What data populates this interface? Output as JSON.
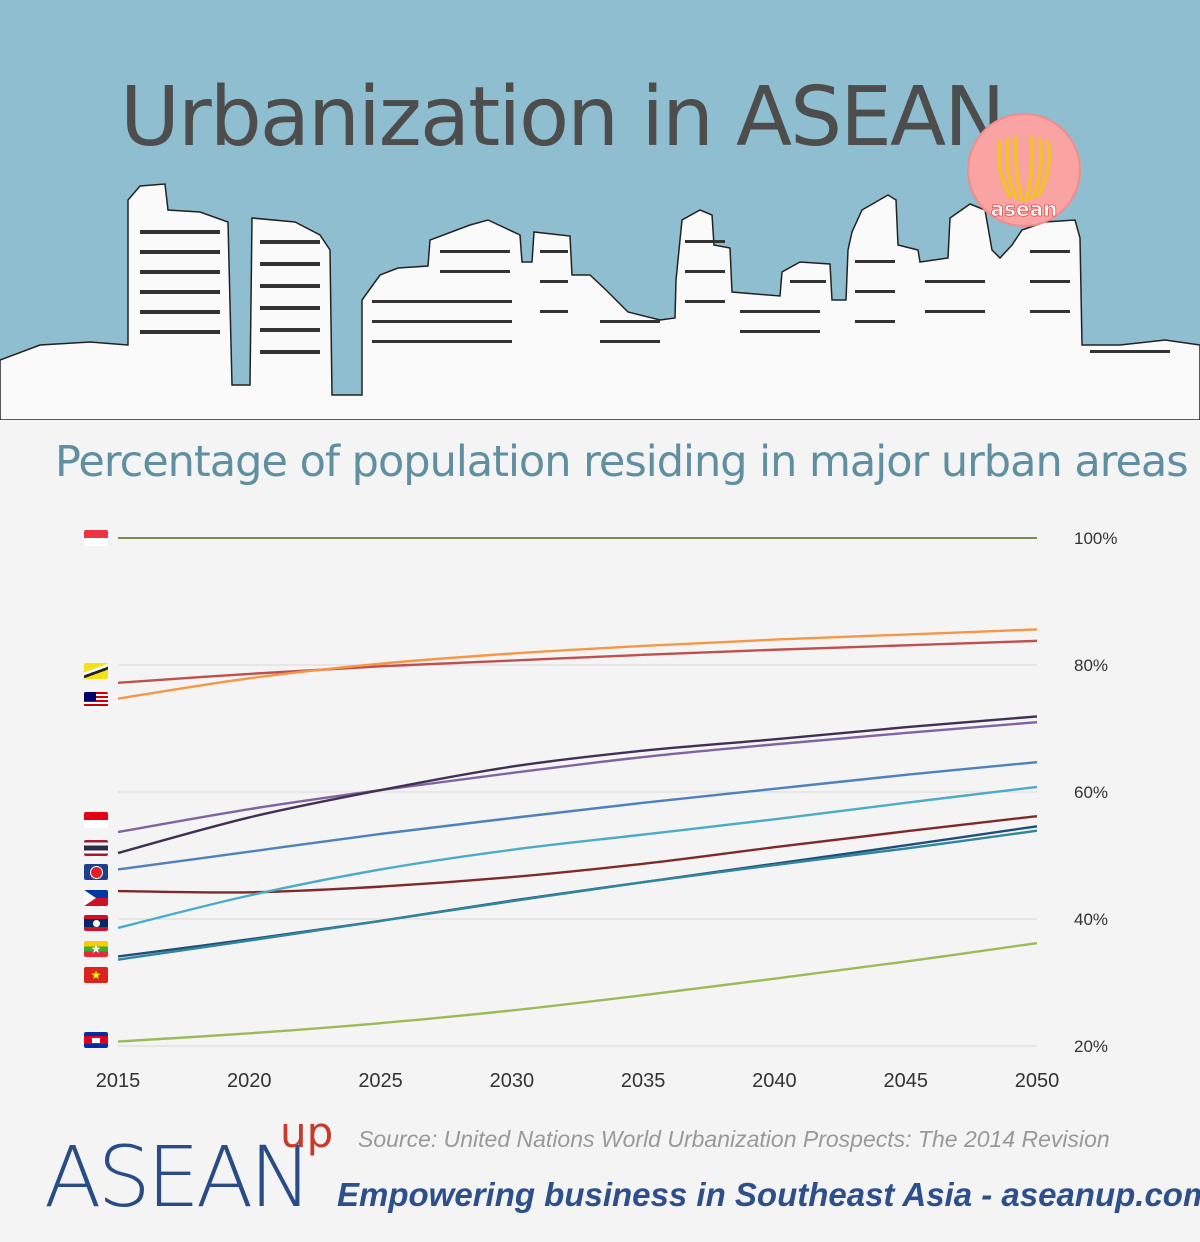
{
  "header": {
    "title": "Urbanization in ASEAN",
    "logo_text": "asean"
  },
  "chart_data": {
    "type": "line",
    "title": "Percentage of population residing in major urban areas",
    "x": [
      2015,
      2020,
      2025,
      2030,
      2035,
      2040,
      2045,
      2050
    ],
    "x_tick_labels": [
      "2015",
      "2020",
      "2025",
      "2030",
      "2035",
      "2040",
      "2045",
      "2050"
    ],
    "y_tick_labels": [
      "100%",
      "80%",
      "60%",
      "40%",
      "20%"
    ],
    "y_ticks": [
      100,
      80,
      60,
      40,
      20
    ],
    "ylim": [
      20,
      100
    ],
    "grid": true,
    "series": [
      {
        "flag": "singapore",
        "color": "#4e6b1c",
        "values": [
          100,
          100,
          100,
          100,
          100,
          100,
          100,
          100
        ]
      },
      {
        "flag": "brunei",
        "color": "#c0504d",
        "values": [
          77.2,
          78.6,
          79.8,
          80.7,
          81.6,
          82.4,
          83.1,
          83.8
        ]
      },
      {
        "flag": "malaysia",
        "color": "#f79646",
        "values": [
          74.7,
          77.9,
          80.2,
          81.8,
          83.0,
          84.0,
          84.8,
          85.6
        ]
      },
      {
        "flag": "indonesia",
        "color": "#8064a2",
        "values": [
          53.7,
          57.3,
          60.3,
          63.0,
          65.5,
          67.5,
          69.3,
          71.0
        ]
      },
      {
        "flag": "thailand",
        "color": "#403152",
        "values": [
          50.4,
          56.0,
          60.3,
          64.0,
          66.5,
          68.3,
          70.2,
          71.9
        ]
      },
      {
        "flag": "asean",
        "color": "#4f81bd",
        "values": [
          47.8,
          50.6,
          53.4,
          55.9,
          58.3,
          60.5,
          62.7,
          64.7
        ]
      },
      {
        "flag": "philippines",
        "color": "#7f2a2a",
        "values": [
          44.4,
          44.2,
          45.1,
          46.6,
          48.7,
          51.3,
          53.8,
          56.2
        ]
      },
      {
        "flag": "laos",
        "color": "#4bacc6",
        "values": [
          38.6,
          43.7,
          47.8,
          50.9,
          53.3,
          55.7,
          58.3,
          60.8
        ]
      },
      {
        "flag": "myanmar",
        "color": "#1f4e79",
        "values": [
          34.1,
          36.8,
          39.7,
          42.9,
          45.8,
          48.7,
          51.6,
          54.6
        ]
      },
      {
        "flag": "vietnam",
        "color": "#31859c",
        "values": [
          33.6,
          36.6,
          39.7,
          42.8,
          45.8,
          48.5,
          51.1,
          53.9
        ]
      },
      {
        "flag": "cambodia",
        "color": "#9bbb59",
        "values": [
          20.7,
          22.0,
          23.6,
          25.6,
          28.0,
          30.6,
          33.3,
          36.2
        ]
      }
    ]
  },
  "footer": {
    "source": "Source: United Nations World Urbanization Prospects: The 2014 Revision",
    "tagline": "Empowering business in Southeast Asia - aseanup.com",
    "brand": "ASEAN",
    "brand_sup": "up"
  }
}
